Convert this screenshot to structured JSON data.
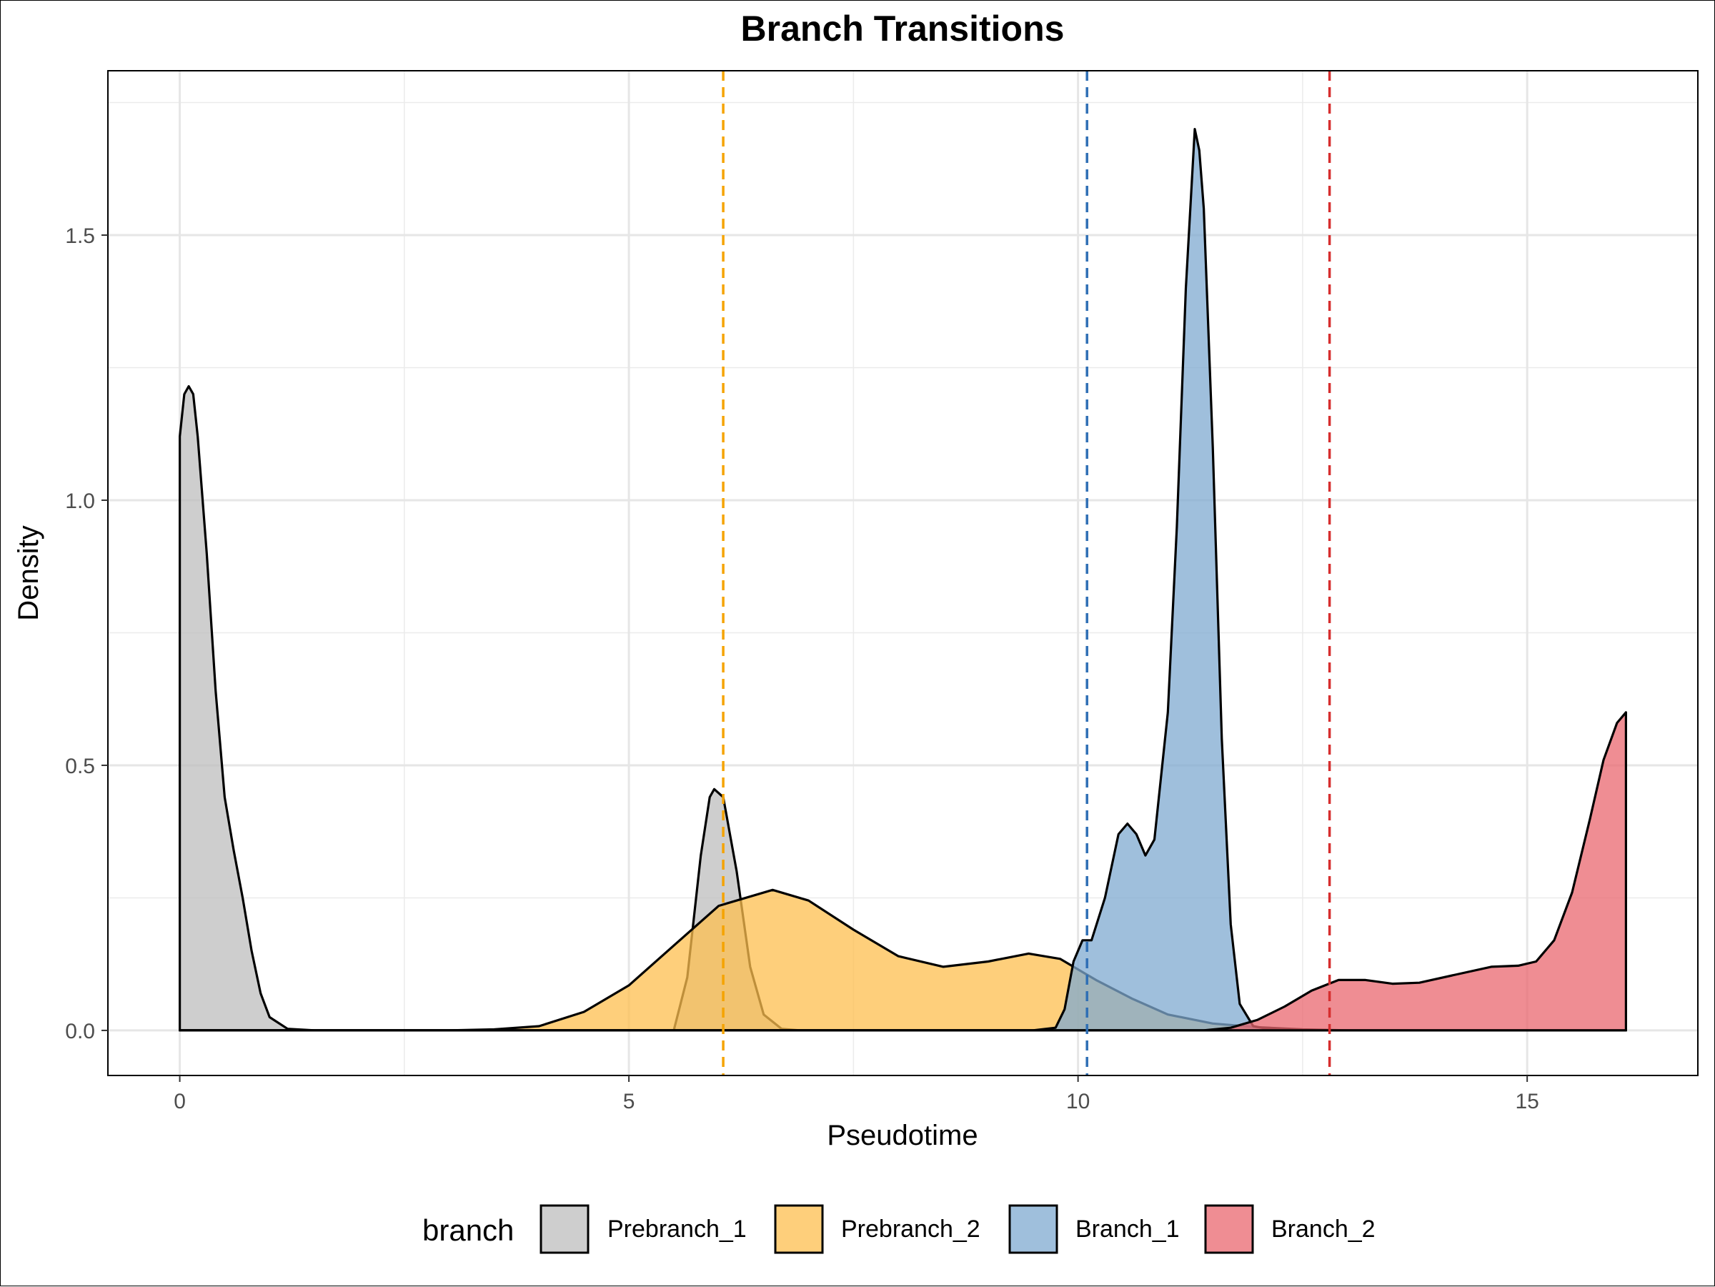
{
  "chart_data": {
    "type": "density",
    "title": "Branch Transitions",
    "xlabel": "Pseudotime",
    "ylabel": "Density",
    "xlim": [
      -0.8,
      16.9
    ],
    "ylim": [
      -0.085,
      1.81
    ],
    "x_ticks": [
      {
        "value": 0,
        "label": "0"
      },
      {
        "value": 5,
        "label": "5"
      },
      {
        "value": 10,
        "label": "10"
      },
      {
        "value": 15,
        "label": "15"
      }
    ],
    "y_ticks": [
      {
        "value": 0,
        "label": "0.0"
      },
      {
        "value": 0.5,
        "label": "0.5"
      },
      {
        "value": 1,
        "label": "1.0"
      },
      {
        "value": 1.5,
        "label": "1.5"
      }
    ],
    "grid": true,
    "legend": {
      "title": "branch",
      "position": "bottom"
    },
    "series": [
      {
        "name": "Prebranch_1",
        "color": "#bdbdbd",
        "points": [
          [
            0,
            1.12
          ],
          [
            0.05,
            1.2
          ],
          [
            0.1,
            1.215
          ],
          [
            0.15,
            1.2
          ],
          [
            0.2,
            1.12
          ],
          [
            0.3,
            0.9
          ],
          [
            0.4,
            0.64
          ],
          [
            0.5,
            0.44
          ],
          [
            0.6,
            0.34
          ],
          [
            0.7,
            0.25
          ],
          [
            0.8,
            0.15
          ],
          [
            0.9,
            0.07
          ],
          [
            1.0,
            0.025
          ],
          [
            1.2,
            0.003
          ],
          [
            1.5,
            0
          ],
          [
            5.5,
            0
          ],
          [
            5.65,
            0.1
          ],
          [
            5.8,
            0.33
          ],
          [
            5.9,
            0.44
          ],
          [
            5.95,
            0.455
          ],
          [
            6.05,
            0.44
          ],
          [
            6.2,
            0.3
          ],
          [
            6.35,
            0.12
          ],
          [
            6.5,
            0.03
          ],
          [
            6.7,
            0.003
          ],
          [
            6.9,
            0
          ],
          [
            16.1,
            0
          ]
        ]
      },
      {
        "name": "Prebranch_2",
        "color": "#fdbf4f",
        "points": [
          [
            0,
            0
          ],
          [
            3,
            0
          ],
          [
            3.5,
            0.002
          ],
          [
            4.0,
            0.008
          ],
          [
            4.5,
            0.035
          ],
          [
            5.0,
            0.085
          ],
          [
            5.5,
            0.16
          ],
          [
            6.0,
            0.235
          ],
          [
            6.6,
            0.265
          ],
          [
            7.0,
            0.245
          ],
          [
            7.5,
            0.19
          ],
          [
            8.0,
            0.14
          ],
          [
            8.5,
            0.12
          ],
          [
            9.0,
            0.13
          ],
          [
            9.45,
            0.145
          ],
          [
            9.8,
            0.135
          ],
          [
            10.2,
            0.095
          ],
          [
            10.6,
            0.06
          ],
          [
            11.0,
            0.03
          ],
          [
            11.5,
            0.013
          ],
          [
            12.0,
            0.006
          ],
          [
            12.5,
            0.002
          ],
          [
            13.0,
            0
          ],
          [
            16.1,
            0
          ]
        ]
      },
      {
        "name": "Branch_1",
        "color": "#7fa9d0",
        "points": [
          [
            0,
            0
          ],
          [
            9.5,
            0
          ],
          [
            9.75,
            0.005
          ],
          [
            9.85,
            0.04
          ],
          [
            9.95,
            0.13
          ],
          [
            10.05,
            0.17
          ],
          [
            10.15,
            0.17
          ],
          [
            10.3,
            0.25
          ],
          [
            10.45,
            0.37
          ],
          [
            10.55,
            0.39
          ],
          [
            10.65,
            0.37
          ],
          [
            10.75,
            0.33
          ],
          [
            10.85,
            0.36
          ],
          [
            11.0,
            0.6
          ],
          [
            11.1,
            0.95
          ],
          [
            11.2,
            1.4
          ],
          [
            11.3,
            1.7
          ],
          [
            11.35,
            1.66
          ],
          [
            11.4,
            1.55
          ],
          [
            11.5,
            1.1
          ],
          [
            11.6,
            0.55
          ],
          [
            11.7,
            0.2
          ],
          [
            11.8,
            0.05
          ],
          [
            11.95,
            0.008
          ],
          [
            12.2,
            0
          ],
          [
            16.1,
            0
          ]
        ]
      },
      {
        "name": "Branch_2",
        "color": "#e9676f",
        "points": [
          [
            0,
            0
          ],
          [
            11.4,
            0
          ],
          [
            11.7,
            0.005
          ],
          [
            12.0,
            0.02
          ],
          [
            12.3,
            0.045
          ],
          [
            12.6,
            0.075
          ],
          [
            12.9,
            0.095
          ],
          [
            13.2,
            0.095
          ],
          [
            13.5,
            0.088
          ],
          [
            13.8,
            0.09
          ],
          [
            14.2,
            0.105
          ],
          [
            14.6,
            0.12
          ],
          [
            14.9,
            0.122
          ],
          [
            15.1,
            0.13
          ],
          [
            15.3,
            0.17
          ],
          [
            15.5,
            0.26
          ],
          [
            15.7,
            0.4
          ],
          [
            15.85,
            0.51
          ],
          [
            16.0,
            0.58
          ],
          [
            16.1,
            0.6
          ],
          [
            16.1,
            0
          ]
        ]
      }
    ],
    "vlines": [
      {
        "x": 6.05,
        "color": "#f5a300"
      },
      {
        "x": 10.1,
        "color": "#2f6fb5"
      },
      {
        "x": 12.8,
        "color": "#d62e2e"
      }
    ]
  }
}
